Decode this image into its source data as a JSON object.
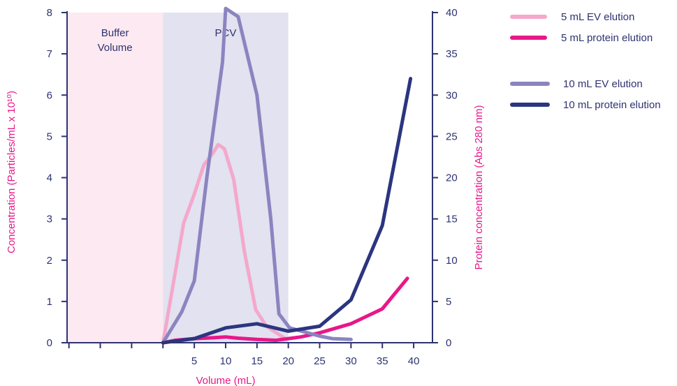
{
  "chart_data": {
    "type": "line",
    "x_label": "Volume (mL)",
    "y_left_label": "Concentration (Particles/mL x 10¹⁰)",
    "y_right_label": "Protein concentration (Abs 280 nm)",
    "x_ticks": [
      5,
      10,
      15,
      20,
      25,
      30,
      35,
      40
    ],
    "y_left_ticks": [
      0,
      1,
      2,
      3,
      4,
      5,
      6,
      7,
      8
    ],
    "y_right_ticks": [
      0,
      5,
      10,
      15,
      20,
      25,
      30,
      35,
      40
    ],
    "x_range": [
      -15.3,
      43
    ],
    "y_left_range": [
      0,
      8
    ],
    "y_right_range": [
      0,
      40
    ],
    "regions": [
      {
        "label_lines": [
          "Buffer",
          "Volume"
        ],
        "x_start": -15.3,
        "x_end": 0,
        "color": "#fde9f1"
      },
      {
        "label_lines": [
          "PCV"
        ],
        "x_start": 0,
        "x_end": 20,
        "color": "#e2e2f0"
      }
    ],
    "series": [
      {
        "name": "5 mL EV elution",
        "axis": "left",
        "color": "#f4a8cb",
        "x": [
          0,
          1.5,
          3.3,
          5,
          6.5,
          8,
          8.8,
          9.8,
          11.3,
          13,
          14.8,
          16.5,
          18,
          19.5
        ],
        "y": [
          0,
          1.3,
          2.9,
          3.6,
          4.3,
          4.6,
          4.8,
          4.7,
          3.95,
          2.2,
          0.8,
          0.4,
          0.25,
          0.1
        ]
      },
      {
        "name": "5 mL protein elution",
        "axis": "right",
        "color": "#e8178a",
        "x": [
          0,
          2,
          5,
          8,
          10,
          12,
          15,
          18,
          20,
          22,
          25,
          30,
          35,
          39
        ],
        "y": [
          0,
          0.3,
          0.5,
          0.6,
          0.7,
          0.55,
          0.4,
          0.3,
          0.5,
          0.7,
          1.2,
          2.3,
          4.1,
          7.8
        ]
      },
      {
        "name": "10 mL EV elution",
        "axis": "right",
        "color": "#8a85c0",
        "x": [
          0,
          3,
          5,
          7,
          9.5,
          10,
          12,
          15,
          17.2,
          18.5,
          20.2,
          25,
          27,
          30
        ],
        "y": [
          0,
          3.75,
          7.5,
          20,
          34,
          40.5,
          39.5,
          30,
          15,
          3.5,
          1.8,
          0.8,
          0.5,
          0.4
        ]
      },
      {
        "name": "10 mL protein elution",
        "axis": "right",
        "color": "#2b3580",
        "x": [
          0,
          5,
          10,
          15,
          20,
          25,
          30,
          35,
          39.5
        ],
        "y": [
          0,
          0.5,
          1.8,
          2.3,
          1.4,
          2.0,
          5.2,
          14.2,
          32.0
        ]
      }
    ]
  },
  "legend": [
    {
      "label": "5 mL EV elution",
      "color": "#f4a8cb"
    },
    {
      "label": "5 mL protein elution",
      "color": "#e8178a"
    },
    {
      "label": "10 mL EV elution",
      "color": "#8a85c0"
    },
    {
      "label": "10 mL protein elution",
      "color": "#2b3580"
    }
  ],
  "colors": {
    "axis": "#2d3370",
    "y_left_label": "#e8178a",
    "y_right_label": "#e8178a",
    "x_label": "#e8178a"
  }
}
